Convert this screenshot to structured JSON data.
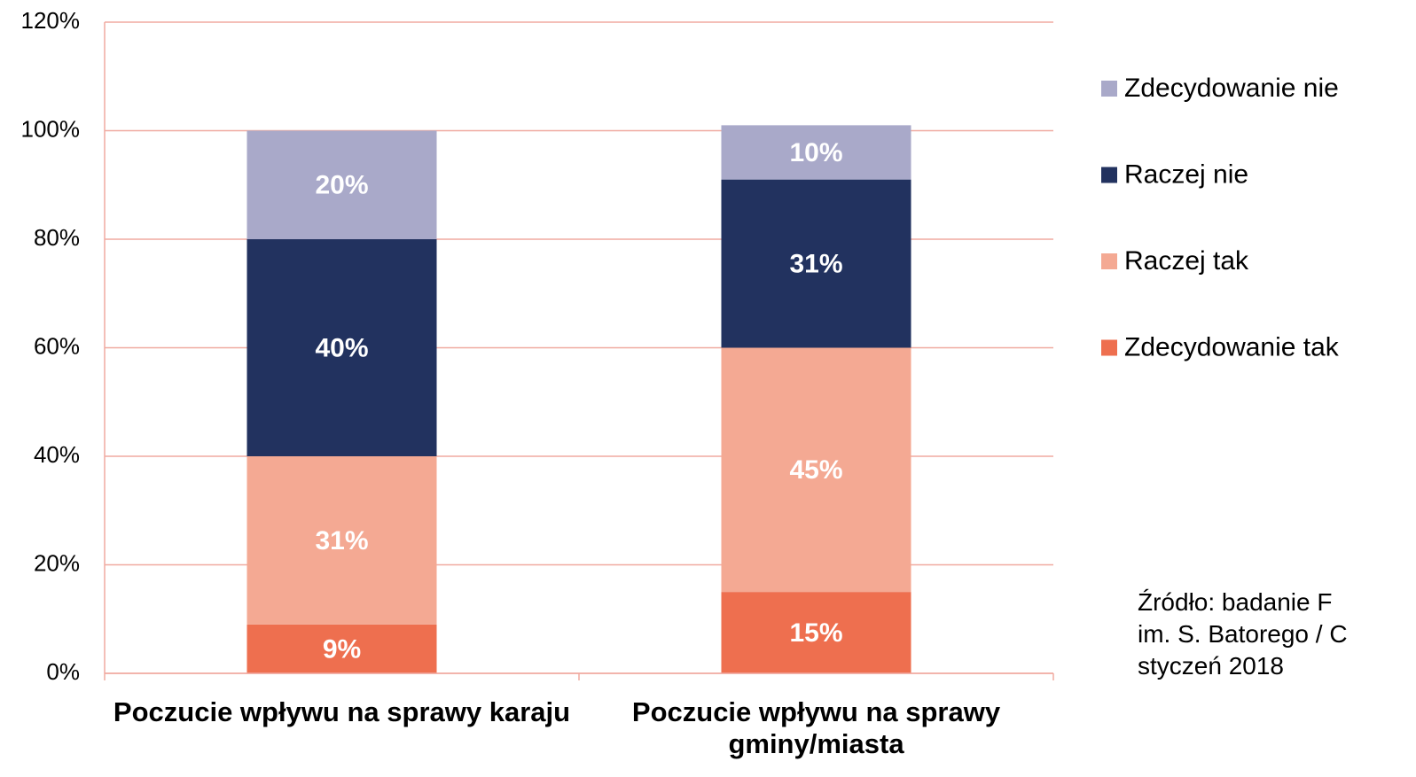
{
  "chart_data": {
    "type": "stacked_bar",
    "categories": [
      "Poczucie wpływu na sprawy karaju",
      "Poczucie wpływu na sprawy gminy/miasta"
    ],
    "series": [
      {
        "name": "Zdecydowanie tak",
        "color": "#ee6f4f",
        "values": [
          9,
          15
        ],
        "value_labels": [
          "9%",
          "15%"
        ]
      },
      {
        "name": "Raczej tak",
        "color": "#f4a993",
        "values": [
          31,
          45
        ],
        "value_labels": [
          "31%",
          "45%"
        ]
      },
      {
        "name": "Raczej nie",
        "color": "#22325f",
        "values": [
          40,
          31
        ],
        "value_labels": [
          "40%",
          "31%"
        ]
      },
      {
        "name": "Zdecydowanie nie",
        "color": "#a9a9c9",
        "values": [
          20,
          10
        ],
        "value_labels": [
          "20%",
          "10%"
        ]
      }
    ],
    "ylim": [
      0,
      120
    ],
    "yticks": [
      {
        "value": 0,
        "label": "0%"
      },
      {
        "value": 20,
        "label": "20%"
      },
      {
        "value": 40,
        "label": "40%"
      },
      {
        "value": 60,
        "label": "60%"
      },
      {
        "value": 80,
        "label": "80%"
      },
      {
        "value": 100,
        "label": "100%"
      },
      {
        "value": 120,
        "label": "120%"
      }
    ],
    "grid": true,
    "legend": "right",
    "note": [
      "Źródło: badanie F",
      "im. S. Batorego / C",
      "styczeń 2018"
    ]
  }
}
